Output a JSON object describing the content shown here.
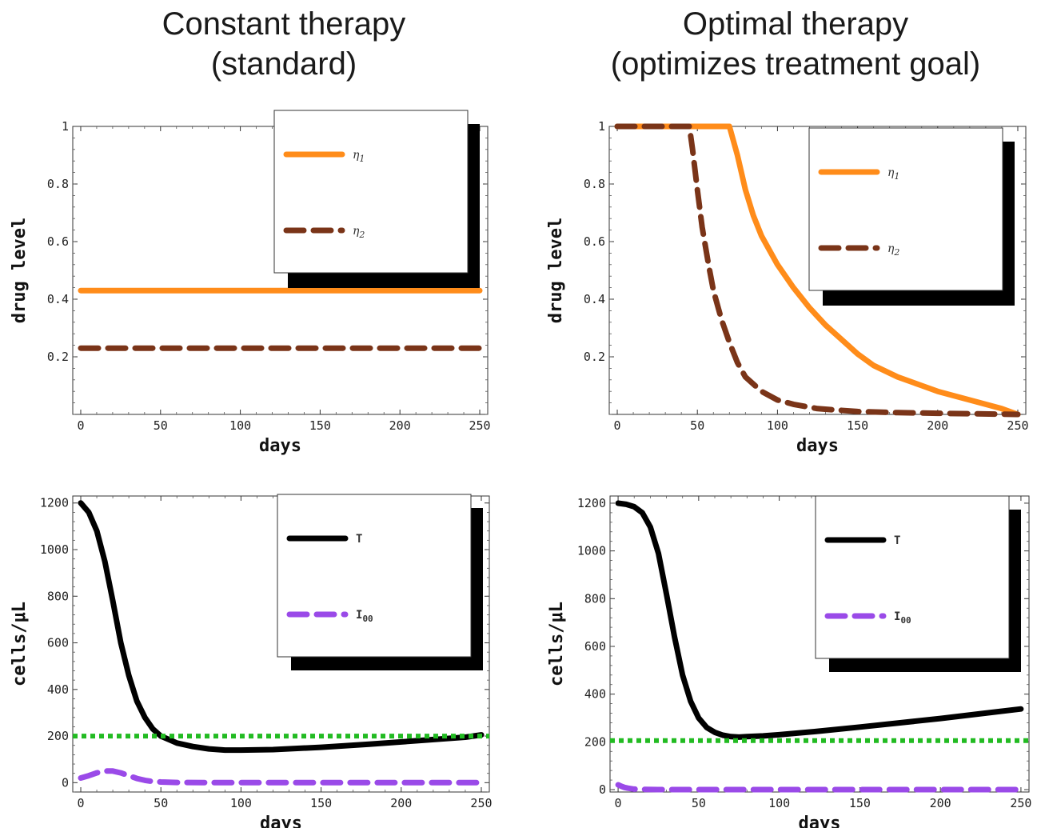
{
  "titles": {
    "left_line1": "Constant therapy",
    "left_line2": "(standard)",
    "right_line1": "Optimal therapy",
    "right_line2": "(optimizes treatment goal)"
  },
  "chart_data": [
    {
      "type": "line",
      "xlabel": "days",
      "ylabel": "drug level",
      "xlim": [
        -5,
        255
      ],
      "ylim": [
        0,
        1
      ],
      "xticks": [
        0,
        50,
        100,
        150,
        200,
        250
      ],
      "yticks": [
        0.2,
        0.4,
        0.6,
        0.8,
        1
      ],
      "ytick_labels": [
        "0.2",
        "0.4",
        "0.6",
        "0.8",
        "1"
      ],
      "grid": false,
      "legend": "top-right",
      "series": [
        {
          "name": "η1",
          "color": "#ff8c1a",
          "style": "solid",
          "x": [
            0,
            250
          ],
          "y": [
            0.43,
            0.43
          ]
        },
        {
          "name": "η2",
          "color": "#7a3418",
          "style": "dashed",
          "x": [
            0,
            250
          ],
          "y": [
            0.23,
            0.23
          ]
        }
      ]
    },
    {
      "type": "line",
      "xlabel": "days",
      "ylabel": "drug level",
      "xlim": [
        -5,
        255
      ],
      "ylim": [
        0,
        1
      ],
      "xticks": [
        0,
        50,
        100,
        150,
        200,
        250
      ],
      "yticks": [
        0.2,
        0.4,
        0.6,
        0.8,
        1
      ],
      "ytick_labels": [
        "0.2",
        "0.4",
        "0.6",
        "0.8",
        "1"
      ],
      "grid": false,
      "legend": "top-right",
      "series": [
        {
          "name": "η1",
          "color": "#ff8c1a",
          "style": "solid",
          "x": [
            0,
            70,
            75,
            80,
            85,
            90,
            100,
            110,
            120,
            130,
            140,
            150,
            160,
            175,
            190,
            200,
            210,
            220,
            230,
            240,
            250
          ],
          "y": [
            1,
            1,
            0.9,
            0.78,
            0.69,
            0.62,
            0.52,
            0.44,
            0.37,
            0.31,
            0.26,
            0.21,
            0.17,
            0.13,
            0.1,
            0.08,
            0.065,
            0.05,
            0.035,
            0.02,
            0.0
          ]
        },
        {
          "name": "η2",
          "color": "#7a3418",
          "style": "dashed",
          "x": [
            0,
            45,
            47,
            50,
            53,
            57,
            60,
            65,
            70,
            75,
            80,
            90,
            100,
            110,
            125,
            150,
            175,
            200,
            225,
            250
          ],
          "y": [
            1,
            1,
            0.92,
            0.78,
            0.65,
            0.52,
            0.43,
            0.33,
            0.25,
            0.18,
            0.13,
            0.08,
            0.05,
            0.035,
            0.02,
            0.01,
            0.006,
            0.004,
            0.002,
            0.0
          ]
        }
      ]
    },
    {
      "type": "line",
      "xlabel": "days",
      "ylabel": "cells/μL",
      "xlim": [
        -5,
        255
      ],
      "ylim": [
        -40,
        1230
      ],
      "xticks": [
        0,
        50,
        100,
        150,
        200,
        250
      ],
      "yticks": [
        0,
        200,
        400,
        600,
        800,
        1000,
        1200
      ],
      "ytick_labels": [
        "0",
        "200",
        "400",
        "600",
        "800",
        "1000",
        "1200"
      ],
      "grid": false,
      "legend": "top-right",
      "series": [
        {
          "name": "T",
          "color": "#000000",
          "style": "solid",
          "x": [
            0,
            5,
            10,
            15,
            20,
            25,
            30,
            35,
            40,
            45,
            50,
            55,
            60,
            70,
            80,
            90,
            100,
            120,
            150,
            180,
            210,
            240,
            250
          ],
          "y": [
            1200,
            1160,
            1080,
            950,
            780,
            600,
            460,
            350,
            280,
            230,
            200,
            185,
            170,
            155,
            145,
            140,
            140,
            142,
            152,
            165,
            180,
            195,
            205
          ]
        },
        {
          "name": "I00",
          "color": "#9a4ae8",
          "style": "dashed",
          "x": [
            0,
            5,
            10,
            15,
            20,
            25,
            30,
            35,
            40,
            45,
            50,
            60,
            80,
            100,
            150,
            200,
            250
          ],
          "y": [
            20,
            30,
            42,
            50,
            50,
            42,
            30,
            18,
            10,
            5,
            3,
            1,
            0,
            0,
            0,
            0,
            0
          ]
        },
        {
          "name": "",
          "color": "#22bb22",
          "style": "dotted",
          "x": [
            -5,
            255
          ],
          "y": [
            200,
            200
          ]
        }
      ]
    },
    {
      "type": "line",
      "xlabel": "days",
      "ylabel": "cells/μL",
      "xlim": [
        -5,
        255
      ],
      "ylim": [
        -10,
        1230
      ],
      "xticks": [
        0,
        50,
        100,
        150,
        200,
        250
      ],
      "yticks": [
        0,
        200,
        400,
        600,
        800,
        1000,
        1200
      ],
      "ytick_labels": [
        "0",
        "200",
        "400",
        "600",
        "800",
        "1000",
        "1200"
      ],
      "grid": false,
      "legend": "top-right",
      "series": [
        {
          "name": "T",
          "color": "#000000",
          "style": "solid",
          "x": [
            0,
            5,
            10,
            15,
            20,
            25,
            30,
            35,
            40,
            45,
            50,
            55,
            60,
            65,
            70,
            75,
            80,
            90,
            100,
            125,
            150,
            175,
            200,
            225,
            250
          ],
          "y": [
            1200,
            1195,
            1185,
            1160,
            1100,
            990,
            820,
            640,
            480,
            370,
            300,
            260,
            240,
            228,
            222,
            220,
            222,
            225,
            230,
            245,
            262,
            280,
            298,
            318,
            338
          ]
        },
        {
          "name": "I00",
          "color": "#9a4ae8",
          "style": "dashed",
          "x": [
            0,
            2,
            4,
            6,
            8,
            10,
            15,
            25,
            50,
            100,
            150,
            200,
            250
          ],
          "y": [
            20,
            14,
            9,
            6,
            4,
            2,
            1,
            0,
            0,
            0,
            0,
            0,
            0
          ]
        },
        {
          "name": "",
          "color": "#22bb22",
          "style": "dotted",
          "x": [
            -5,
            255
          ],
          "y": [
            205,
            205
          ]
        }
      ]
    }
  ],
  "legends": [
    {
      "items": [
        "η1",
        "η2"
      ]
    },
    {
      "items": [
        "η1",
        "η2"
      ]
    },
    {
      "items": [
        "T",
        "I00"
      ]
    },
    {
      "items": [
        "T",
        "I00"
      ]
    }
  ]
}
